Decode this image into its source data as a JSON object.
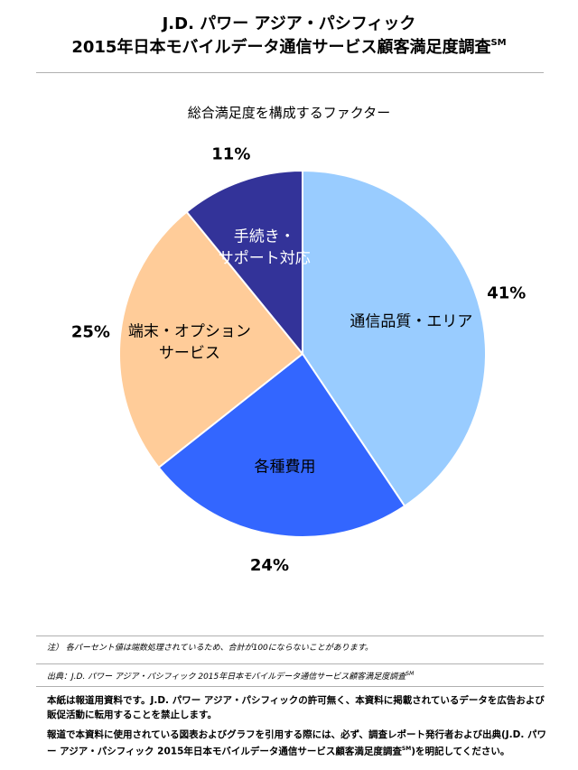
{
  "header": {
    "title_line1": "J.D. パワー アジア・パシフィック",
    "title_line2": "2015年日本モバイルデータ通信サービス顧客満足度調査",
    "title_mark": "SM"
  },
  "chart_data": {
    "type": "pie",
    "title": "総合満足度を構成するファクター",
    "slices": [
      {
        "label": "通信品質・エリア",
        "value": 41,
        "value_label": "41%",
        "color": "#99ccff",
        "text_color": "#000000"
      },
      {
        "label": "各種費用",
        "value": 24,
        "value_label": "24%",
        "color": "#3366ff",
        "text_color": "#000000"
      },
      {
        "label": "端末・オプションサービス",
        "label_lines": [
          "端末・オプション",
          "サービス"
        ],
        "value": 25,
        "value_label": "25%",
        "color": "#ffcc99",
        "text_color": "#000000"
      },
      {
        "label": "手続き・サポート対応",
        "label_lines": [
          "手続き・",
          "サポート対応"
        ],
        "value": 11,
        "value_label": "11%",
        "color": "#333399",
        "text_color": "#ffffff"
      }
    ]
  },
  "footer": {
    "note": "注） 各パーセント値は端数処理されているため、合計が100にならないことがあります。",
    "source": "出典：J.D. パワー アジア・パシフィック 2015年日本モバイルデータ通信サービス顧客満足度調査",
    "source_mark": "SM",
    "para1": "本紙は報道用資料です。J.D. パワー アジア・パシフィックの許可無く、本資料に掲載されているデータを広告および販促活動に転用することを禁止します。",
    "para2_main": "報道で本資料に使用されている図表およびグラフを引用する際には、必ず、調査レポート発行者および出典(J.D. パワー アジア・パシフィック 2015年日本モバイルデータ通信サービス顧客満足度調査",
    "para2_mark": "SM",
    "para2_end": ")を明記してください。"
  }
}
